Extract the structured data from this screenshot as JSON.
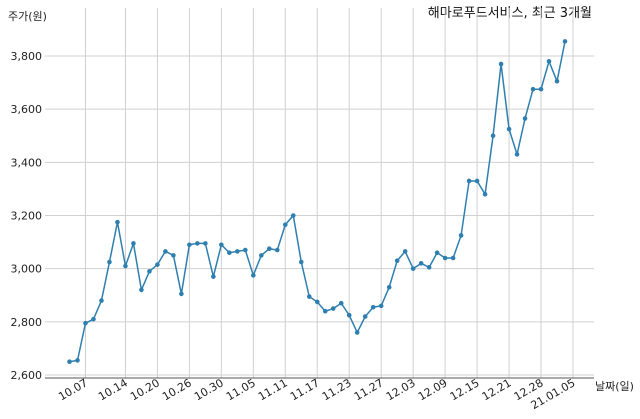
{
  "chart_data": {
    "type": "line",
    "title": "해마로푸드서비스, 최근 3개월",
    "xlabel": "날짜(일)",
    "ylabel": "주가(원)",
    "ylim": [
      2600,
      3900
    ],
    "yticks": [
      2600,
      2800,
      3000,
      3200,
      3400,
      3600,
      3800
    ],
    "ytick_labels": [
      "2,600",
      "2,800",
      "3,000",
      "3,200",
      "3,400",
      "3,600",
      "3,800"
    ],
    "xtick_labels": [
      "10.07",
      "10.14",
      "10.20",
      "10.26",
      "10.30",
      "11.05",
      "11.11",
      "11.17",
      "11.23",
      "11.27",
      "12.03",
      "12.09",
      "12.15",
      "12.21",
      "12.28",
      "21.01.05"
    ],
    "xtick_index": [
      2,
      7,
      11,
      15,
      19,
      23,
      27,
      31,
      35,
      39,
      43,
      47,
      51,
      55,
      59,
      63
    ],
    "grid": true,
    "line_color": "#2e7fb0",
    "series": [
      {
        "values": [
          2650,
          2655,
          2795,
          2810,
          2880,
          3025,
          3175,
          3010,
          3095,
          2920,
          2990,
          3015,
          3065,
          3050,
          2905,
          3090,
          3095,
          3095,
          2970,
          3090,
          3060,
          3065,
          3070,
          2975,
          3050,
          3075,
          3070,
          3165,
          3200,
          3025,
          2895,
          2875,
          2840,
          2850,
          2870,
          2825,
          2760,
          2820,
          2855,
          2860,
          2930,
          3030,
          3065,
          3000,
          3020,
          3005,
          3060,
          3040,
          3040,
          3125,
          3330,
          3330,
          3280,
          3500,
          3770,
          3525,
          3430,
          3565,
          3675,
          3675,
          3780,
          3705,
          3855
        ]
      }
    ]
  }
}
